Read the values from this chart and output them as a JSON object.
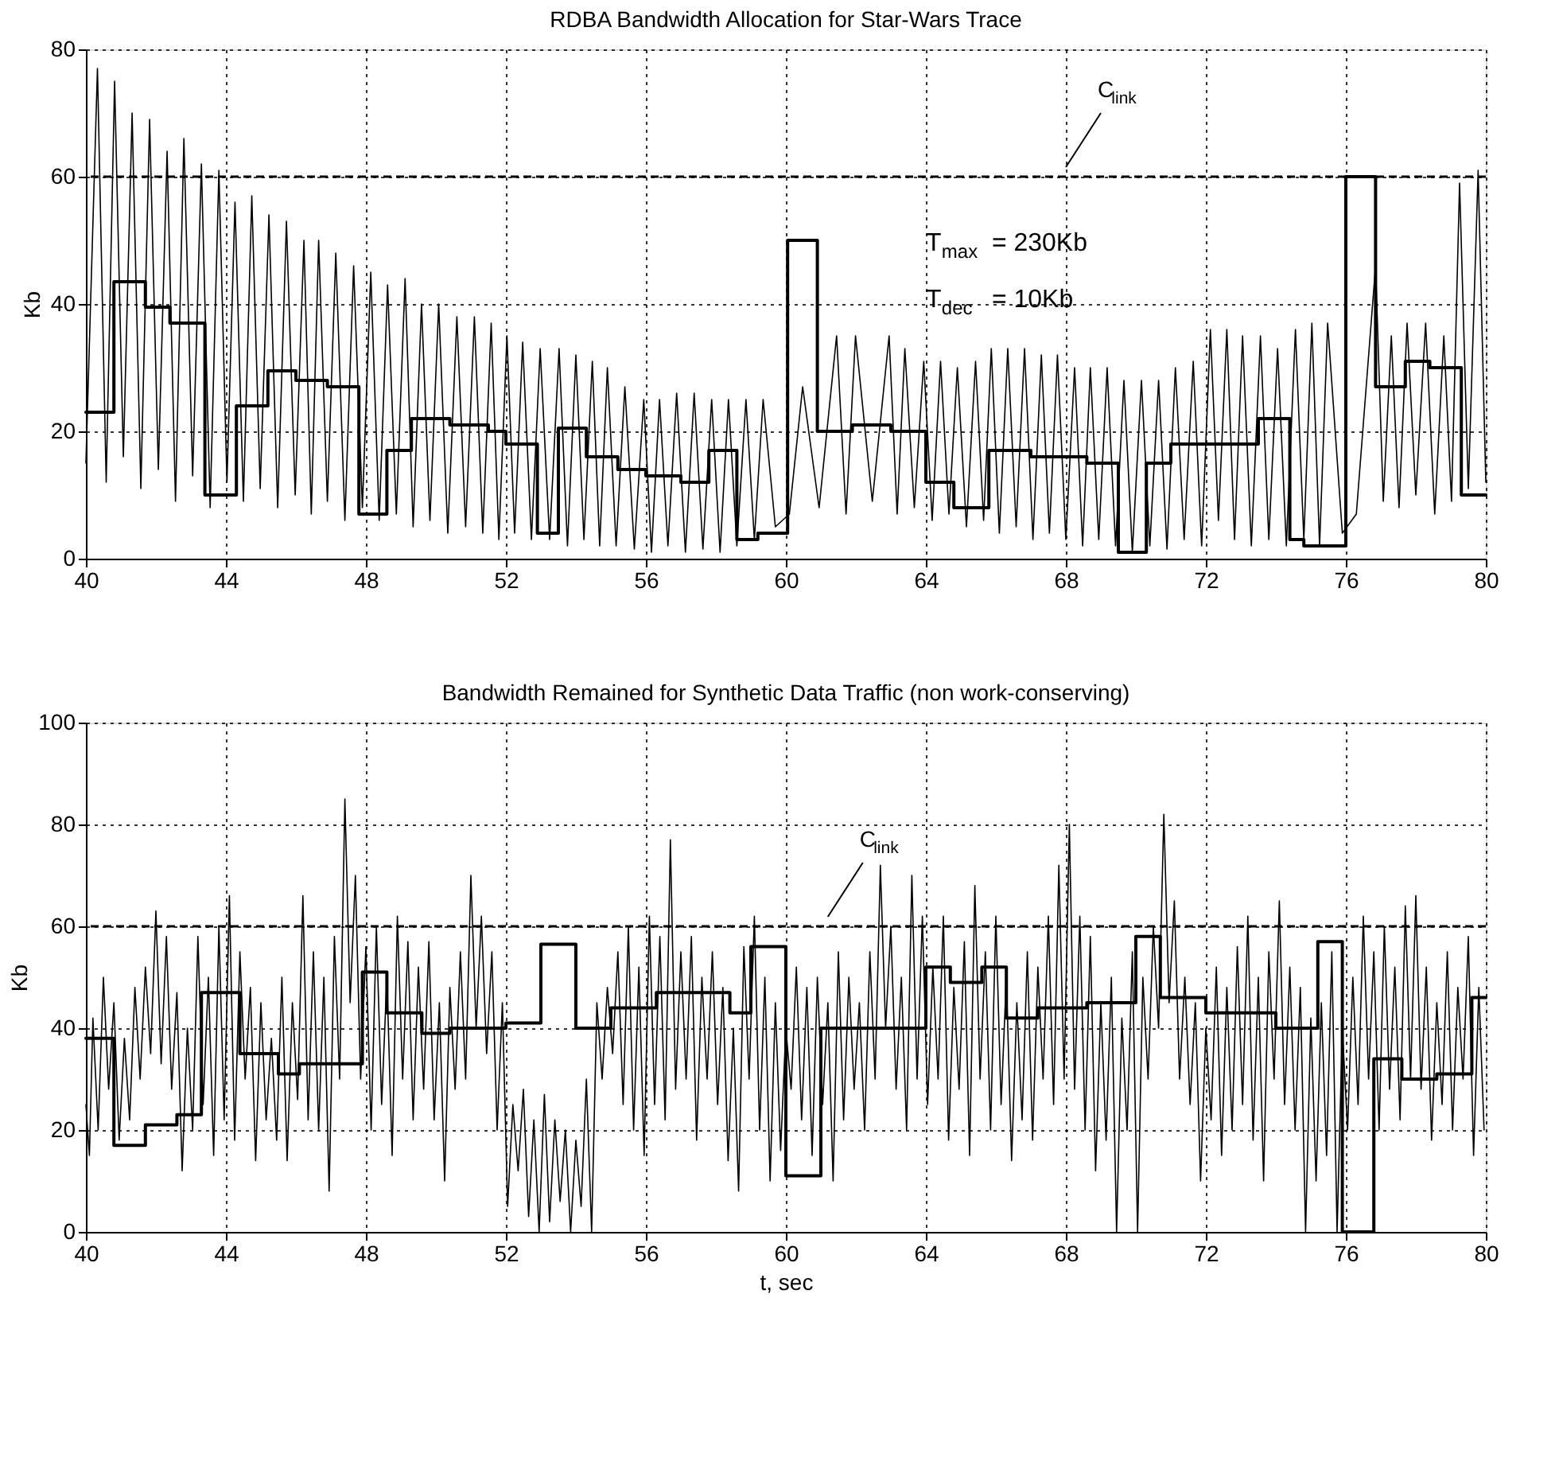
{
  "chart_data": [
    {
      "type": "line",
      "title": "RDBA Bandwidth Allocation for Star-Wars Trace",
      "ylabel": "Kb",
      "xlim": [
        40,
        80
      ],
      "xticks": [
        40,
        44,
        48,
        52,
        56,
        60,
        64,
        68,
        72,
        76,
        80
      ],
      "ylim": [
        0,
        80
      ],
      "yticks": [
        0,
        20,
        40,
        60,
        80
      ],
      "grid": true,
      "ref_lines": [
        {
          "axis": "y",
          "value": 60,
          "label": "C$_{link}$",
          "line_style": "dashed",
          "color": "#000000"
        }
      ],
      "annotations": [
        "T$_{max}$ = 230Kb",
        "T$_{dec}$ = 10Kb"
      ],
      "series": [
        {
          "type": "line",
          "color": "#000000",
          "x": [
            40.0,
            40.33,
            40.58,
            40.82,
            41.07,
            41.32,
            41.57,
            41.82,
            42.07,
            42.32,
            42.56,
            42.8,
            43.05,
            43.3,
            43.55,
            43.8,
            44.03,
            44.26,
            44.5,
            44.74,
            44.98,
            45.23,
            45.48,
            45.73,
            45.98,
            46.23,
            46.44,
            46.65,
            46.9,
            47.14,
            47.4,
            47.65,
            47.9,
            48.14,
            48.38,
            48.62,
            48.87,
            49.12,
            49.35,
            49.59,
            49.83,
            50.08,
            50.34,
            50.6,
            50.85,
            51.1,
            51.34,
            51.58,
            51.8,
            52.03,
            52.25,
            52.48,
            52.73,
            52.98,
            53.25,
            53.52,
            53.76,
            54.0,
            54.23,
            54.47,
            54.68,
            54.9,
            55.15,
            55.4,
            55.67,
            55.94,
            56.16,
            56.39,
            56.63,
            56.88,
            57.13,
            57.38,
            57.63,
            57.88,
            58.12,
            58.36,
            58.6,
            58.86,
            59.1,
            59.35,
            59.7,
            60.1,
            60.48,
            60.95,
            61.45,
            61.72,
            61.99,
            62.47,
            62.95,
            63.18,
            63.4,
            63.67,
            63.94,
            64.18,
            64.42,
            64.66,
            64.9,
            65.16,
            65.42,
            65.65,
            65.87,
            66.1,
            66.34,
            66.58,
            66.82,
            67.06,
            67.3,
            67.53,
            67.76,
            68.0,
            68.25,
            68.48,
            68.7,
            68.94,
            69.18,
            69.42,
            69.66,
            69.9,
            70.16,
            70.4,
            70.65,
            70.89,
            71.13,
            71.38,
            71.64,
            71.88,
            72.13,
            72.36,
            72.6,
            72.82,
            73.05,
            73.3,
            73.56,
            73.8,
            74.05,
            74.3,
            74.56,
            74.8,
            75.03,
            75.25,
            75.48,
            75.9,
            76.3,
            76.85,
            77.07,
            77.3,
            77.52,
            77.75,
            78.0,
            78.28,
            78.54,
            78.8,
            79.02,
            79.25,
            79.5,
            79.78,
            80.0
          ],
          "values": [
            15,
            77,
            12,
            75,
            16,
            70,
            11,
            69,
            14,
            64,
            9,
            66,
            13,
            62,
            8,
            61,
            12,
            56,
            9,
            57,
            11,
            54,
            8,
            53,
            10,
            50,
            7,
            50,
            9,
            48,
            6,
            46,
            8,
            45,
            6,
            43,
            7,
            44,
            5,
            40,
            6,
            40,
            4,
            38,
            5,
            38,
            4,
            37,
            3,
            35,
            4,
            34,
            3,
            33,
            3,
            33,
            2,
            32,
            3,
            31,
            2,
            30,
            2,
            27,
            1.5,
            25,
            1,
            25,
            2,
            26,
            1,
            26,
            1.5,
            25,
            1,
            25,
            2,
            25,
            3,
            25,
            5,
            7,
            27,
            8,
            35,
            7,
            35,
            9,
            35,
            7,
            33,
            8,
            31,
            6,
            31,
            7,
            30,
            5,
            31,
            6,
            33,
            4,
            33,
            5,
            33,
            3,
            32,
            4,
            32,
            3,
            30,
            2,
            30,
            3,
            30,
            2,
            28,
            1,
            28,
            2,
            28,
            1.5,
            30,
            3,
            31,
            2,
            36,
            6,
            36,
            3,
            35,
            2,
            35,
            3,
            33,
            2,
            36,
            3,
            37,
            2,
            37,
            4,
            7,
            46,
            9,
            35,
            8,
            37,
            10,
            37,
            7,
            35,
            9,
            59,
            11,
            61,
            12
          ]
        },
        {
          "type": "step",
          "color": "#000000",
          "x": [
            40,
            40.8,
            41.7,
            42.4,
            43.4,
            44.3,
            45.2,
            46.0,
            46.9,
            47.8,
            48.6,
            49.3,
            50.4,
            51.5,
            52.0,
            52.9,
            53.5,
            54.3,
            55.2,
            56.0,
            57.0,
            57.8,
            58.6,
            59.2,
            60.05,
            60.9,
            61.9,
            63.0,
            64.0,
            64.8,
            65.8,
            67.0,
            68.6,
            69.5,
            70.3,
            71.0,
            73.5,
            74.4,
            74.8,
            76.0,
            76.85,
            77.7,
            78.4,
            79.3,
            80
          ],
          "values": [
            23,
            43.5,
            39.5,
            37,
            10,
            24,
            29.5,
            28,
            27,
            7,
            17,
            22,
            21,
            20,
            18,
            4,
            20.5,
            16,
            14,
            13,
            12,
            17,
            3,
            4,
            50,
            20,
            21,
            20,
            12,
            8,
            17,
            16,
            15,
            1,
            15,
            18,
            22,
            3,
            2,
            60,
            27,
            31,
            30,
            10,
            10
          ]
        }
      ]
    },
    {
      "type": "line",
      "title": "Bandwidth Remained for Synthetic Data Traffic  (non work-conserving)",
      "xlabel": "t, sec",
      "ylabel": "Kb",
      "xlim": [
        40,
        80
      ],
      "xticks": [
        40,
        44,
        48,
        52,
        56,
        60,
        64,
        68,
        72,
        76,
        80
      ],
      "ylim": [
        0,
        100
      ],
      "yticks": [
        0,
        20,
        40,
        60,
        80,
        100
      ],
      "grid": true,
      "ref_lines": [
        {
          "axis": "y",
          "value": 60,
          "label": "C$_{link}$",
          "line_style": "dashed",
          "color": "#000000"
        }
      ],
      "series": [
        {
          "type": "line",
          "color": "#000000",
          "x": [
            40.0,
            40.1,
            40.2,
            40.35,
            40.5,
            40.65,
            40.8,
            40.95,
            41.1,
            41.25,
            41.4,
            41.55,
            41.7,
            41.85,
            42.0,
            42.15,
            42.3,
            42.45,
            42.6,
            42.75,
            42.9,
            43.05,
            43.2,
            43.35,
            43.5,
            43.65,
            43.8,
            43.95,
            44.1,
            44.25,
            44.4,
            44.55,
            44.7,
            44.85,
            45.0,
            45.15,
            45.3,
            45.45,
            45.6,
            45.75,
            45.9,
            46.05,
            46.2,
            46.35,
            46.5,
            46.65,
            46.8,
            46.95,
            47.1,
            47.25,
            47.4,
            47.55,
            47.7,
            47.85,
            48.0,
            48.15,
            48.3,
            48.45,
            48.6,
            48.75,
            48.9,
            49.05,
            49.2,
            49.35,
            49.5,
            49.65,
            49.8,
            49.95,
            50.1,
            50.25,
            50.4,
            50.55,
            50.7,
            50.85,
            51.0,
            51.15,
            51.3,
            51.45,
            51.6,
            51.75,
            51.9,
            52.05,
            52.2,
            52.35,
            52.5,
            52.65,
            52.8,
            52.95,
            53.1,
            53.25,
            53.4,
            53.55,
            53.7,
            53.85,
            54.0,
            54.15,
            54.3,
            54.45,
            54.6,
            54.75,
            54.9,
            55.05,
            55.2,
            55.35,
            55.5,
            55.65,
            55.8,
            55.95,
            56.1,
            56.25,
            56.4,
            56.55,
            56.7,
            56.85,
            57.0,
            57.15,
            57.3,
            57.45,
            57.6,
            57.75,
            57.9,
            58.05,
            58.2,
            58.35,
            58.5,
            58.65,
            58.8,
            58.95,
            59.1,
            59.25,
            59.4,
            59.55,
            59.7,
            59.85,
            60.0,
            60.15,
            60.3,
            60.45,
            60.6,
            60.75,
            60.9,
            61.05,
            61.2,
            61.35,
            61.5,
            61.65,
            61.8,
            61.95,
            62.1,
            62.25,
            62.4,
            62.55,
            62.7,
            62.85,
            63.0,
            63.15,
            63.3,
            63.45,
            63.6,
            63.75,
            63.9,
            64.05,
            64.2,
            64.35,
            64.5,
            64.65,
            64.8,
            64.95,
            65.1,
            65.25,
            65.4,
            65.55,
            65.7,
            65.85,
            66.0,
            66.15,
            66.3,
            66.45,
            66.6,
            66.75,
            66.9,
            67.05,
            67.2,
            67.35,
            67.5,
            67.65,
            67.8,
            67.95,
            68.1,
            68.25,
            68.4,
            68.55,
            68.7,
            68.85,
            69.0,
            69.15,
            69.3,
            69.45,
            69.6,
            69.75,
            69.9,
            70.05,
            70.2,
            70.35,
            70.5,
            70.65,
            70.8,
            70.95,
            71.1,
            71.25,
            71.4,
            71.55,
            71.7,
            71.85,
            72.0,
            72.15,
            72.3,
            72.45,
            72.6,
            72.75,
            72.9,
            73.05,
            73.2,
            73.35,
            73.5,
            73.65,
            73.8,
            73.95,
            74.1,
            74.25,
            74.4,
            74.55,
            74.7,
            74.85,
            75.0,
            75.15,
            75.3,
            75.45,
            75.6,
            75.75,
            75.9,
            76.05,
            76.2,
            76.35,
            76.5,
            76.65,
            76.8,
            76.95,
            77.1,
            77.25,
            77.4,
            77.55,
            77.7,
            77.85,
            78.0,
            78.15,
            78.3,
            78.45,
            78.6,
            78.75,
            78.9,
            79.05,
            79.2,
            79.35,
            79.5,
            79.65,
            79.8,
            79.95
          ],
          "values": [
            25,
            15,
            42,
            20,
            50,
            28,
            45,
            18,
            38,
            22,
            48,
            30,
            52,
            35,
            63,
            33,
            58,
            28,
            47,
            12,
            40,
            20,
            58,
            25,
            50,
            15,
            60,
            22,
            66,
            18,
            55,
            30,
            48,
            14,
            45,
            22,
            38,
            18,
            50,
            14,
            45,
            26,
            66,
            22,
            55,
            20,
            50,
            8,
            58,
            30,
            85,
            45,
            70,
            30,
            56,
            20,
            60,
            25,
            50,
            15,
            62,
            30,
            57,
            22,
            52,
            28,
            57,
            22,
            45,
            10,
            48,
            28,
            55,
            30,
            70,
            40,
            62,
            35,
            55,
            20,
            45,
            5,
            25,
            12,
            28,
            3,
            22,
            0,
            27,
            2,
            22,
            6,
            20,
            0,
            18,
            5,
            30,
            0,
            45,
            30,
            48,
            35,
            55,
            25,
            60,
            20,
            52,
            15,
            62,
            25,
            58,
            22,
            77,
            28,
            55,
            30,
            58,
            18,
            50,
            30,
            55,
            25,
            48,
            14,
            40,
            8,
            56,
            30,
            62,
            20,
            50,
            10,
            45,
            16,
            40,
            28,
            52,
            22,
            48,
            15,
            50,
            25,
            45,
            10,
            55,
            22,
            50,
            28,
            45,
            20,
            55,
            30,
            72,
            40,
            60,
            28,
            50,
            20,
            70,
            30,
            62,
            25,
            52,
            30,
            62,
            18,
            48,
            28,
            57,
            15,
            68,
            30,
            55,
            20,
            62,
            25,
            50,
            14,
            45,
            22,
            55,
            18,
            52,
            30,
            62,
            25,
            72,
            30,
            80,
            28,
            62,
            20,
            58,
            12,
            45,
            18,
            50,
            0,
            42,
            20,
            55,
            0,
            50,
            30,
            60,
            40,
            82,
            45,
            65,
            30,
            50,
            25,
            45,
            10,
            40,
            22,
            52,
            15,
            48,
            20,
            56,
            25,
            62,
            18,
            50,
            10,
            55,
            30,
            65,
            25,
            52,
            20,
            48,
            0,
            42,
            10,
            45,
            15,
            55,
            0,
            40,
            20,
            50,
            25,
            62,
            30,
            55,
            20,
            60,
            28,
            52,
            22,
            64,
            30,
            66,
            28,
            52,
            18,
            45,
            25,
            55,
            20,
            48,
            30,
            58,
            15,
            48,
            20
          ]
        },
        {
          "type": "step",
          "color": "#000000",
          "x": [
            40,
            40.8,
            41.7,
            42.6,
            43.3,
            44.4,
            45.5,
            46.1,
            46.8,
            47.9,
            48.6,
            49.6,
            50.4,
            52.0,
            53.0,
            54.0,
            55.0,
            56.3,
            57.2,
            58.4,
            59.0,
            60.0,
            61.0,
            64.0,
            64.7,
            65.6,
            66.3,
            67.2,
            68.6,
            70.0,
            70.7,
            72.0,
            74.0,
            75.2,
            75.9,
            76.8,
            77.6,
            78.6,
            79.6,
            80
          ],
          "values": [
            38,
            17,
            21,
            23,
            47,
            35,
            31,
            33,
            33,
            51,
            43,
            39,
            40,
            41,
            56.5,
            40,
            44,
            47,
            47,
            43,
            56,
            11,
            40,
            52,
            49,
            52,
            42,
            44,
            45,
            58,
            46,
            43,
            40,
            57,
            0,
            34,
            30,
            31,
            46,
            46
          ]
        }
      ]
    }
  ]
}
